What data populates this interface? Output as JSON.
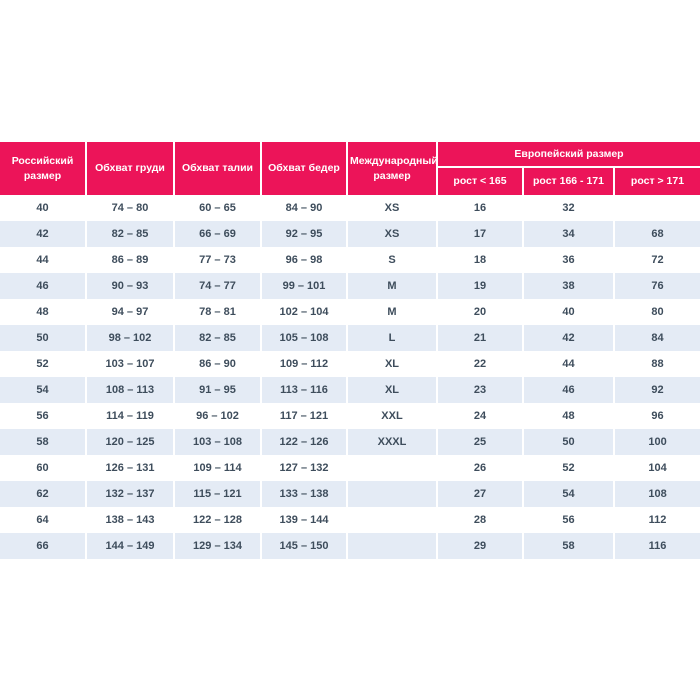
{
  "colors": {
    "header_bg": "#EC1459",
    "header_text": "#FFFFFF",
    "row_bg": "#FFFFFF",
    "row_alt_bg": "#E4EBF5",
    "cell_text": "#3E4D5C",
    "divider": "#FFFFFF"
  },
  "table": {
    "headers": {
      "russian_size": "Российский размер",
      "chest": "Обхват груди",
      "waist": "Обхват талии",
      "hips": "Обхват бедер",
      "international_size": "Международный размер",
      "european_size_group": "Европейский размер",
      "height_lt_165": "рост < 165",
      "height_166_171": "рост 166 - 171",
      "height_gt_171": "рост > 171"
    },
    "rows": [
      [
        "40",
        "74 – 80",
        "60 – 65",
        "84 – 90",
        "XS",
        "16",
        "32",
        ""
      ],
      [
        "42",
        "82 – 85",
        "66 – 69",
        "92 – 95",
        "XS",
        "17",
        "34",
        "68"
      ],
      [
        "44",
        "86 – 89",
        "77 – 73",
        "96 – 98",
        "S",
        "18",
        "36",
        "72"
      ],
      [
        "46",
        "90 – 93",
        "74 – 77",
        "99 – 101",
        "M",
        "19",
        "38",
        "76"
      ],
      [
        "48",
        "94 – 97",
        "78 – 81",
        "102 – 104",
        "M",
        "20",
        "40",
        "80"
      ],
      [
        "50",
        "98 – 102",
        "82 – 85",
        "105 – 108",
        "L",
        "21",
        "42",
        "84"
      ],
      [
        "52",
        "103 – 107",
        "86 – 90",
        "109 – 112",
        "XL",
        "22",
        "44",
        "88"
      ],
      [
        "54",
        "108 – 113",
        "91 – 95",
        "113 – 116",
        "XL",
        "23",
        "46",
        "92"
      ],
      [
        "56",
        "114 – 119",
        "96 – 102",
        "117 – 121",
        "XXL",
        "24",
        "48",
        "96"
      ],
      [
        "58",
        "120 – 125",
        "103 – 108",
        "122 – 126",
        "XXXL",
        "25",
        "50",
        "100"
      ],
      [
        "60",
        "126 – 131",
        "109 – 114",
        "127 – 132",
        "",
        "26",
        "52",
        "104"
      ],
      [
        "62",
        "132 – 137",
        "115 – 121",
        "133 – 138",
        "",
        "27",
        "54",
        "108"
      ],
      [
        "64",
        "138 – 143",
        "122 – 128",
        "139 – 144",
        "",
        "28",
        "56",
        "112"
      ],
      [
        "66",
        "144 – 149",
        "129 – 134",
        "145 – 150",
        "",
        "29",
        "58",
        "116"
      ]
    ]
  }
}
